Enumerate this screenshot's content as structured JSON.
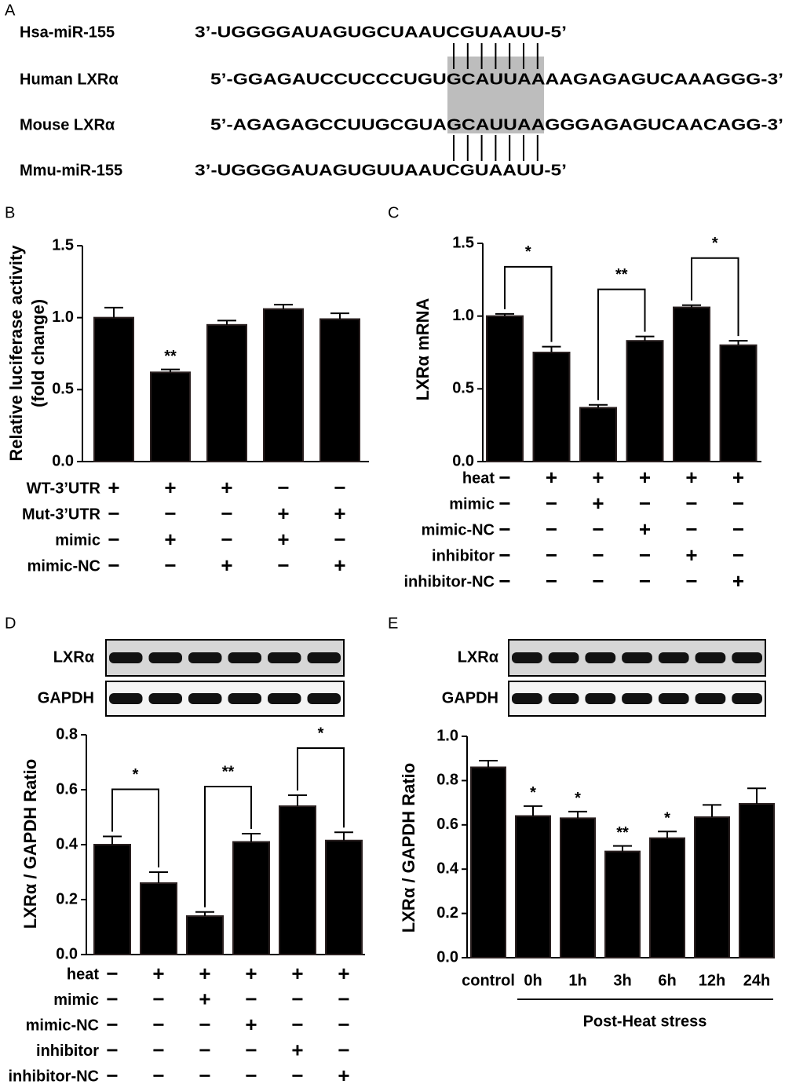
{
  "panel_labels": [
    "A",
    "B",
    "C",
    "D",
    "E"
  ],
  "alignment": {
    "rows": [
      {
        "name": "Hsa-miR-155",
        "sequence": "3’-UGGGGAUAGUGCUAAUCGUAAUU-5’"
      },
      {
        "name": "Human LXRα",
        "sequence": "5’-GGAGAUCCUCCCUGUGCAUUAAAAGAGAGUCAAAGGG-3’"
      },
      {
        "name": "Mouse LXRα",
        "sequence": "5’-AGAGAGCCUUGCGUAGCAUUAAGGGAGAGUCAACAGG-3’"
      },
      {
        "name": "Mmu-miR-155",
        "sequence": "3’-UGGGGAUAGUGUUAAUCGUAAUU-5’"
      }
    ]
  },
  "chart_data": [
    {
      "type": "bar",
      "ylabel": [
        "Relative luciferase activity",
        "(fold change)"
      ],
      "values": [
        1.0,
        0.62,
        0.95,
        1.06,
        0.99
      ],
      "errors": [
        0.07,
        0.02,
        0.03,
        0.03,
        0.04
      ],
      "annotations": [
        null,
        "**",
        null,
        null,
        null
      ],
      "color": "#000000",
      "ylim": [
        0,
        1.5
      ],
      "yticks": [
        {
          "value": 0,
          "label": "0.0"
        },
        0.5,
        {
          "value": 1,
          "label": "1.0"
        },
        1.5
      ],
      "conditions": [
        {
          "name": "WT-3’UTR",
          "signs": [
            "+",
            "+",
            "+",
            "−",
            "−"
          ]
        },
        {
          "name": "Mut-3’UTR",
          "signs": [
            "−",
            "−",
            "−",
            "+",
            "+"
          ]
        },
        {
          "name": "mimic",
          "signs": [
            "−",
            "+",
            "−",
            "+",
            "−"
          ]
        },
        {
          "name": "mimic-NC",
          "signs": [
            "−",
            "−",
            "+",
            "−",
            "+"
          ]
        }
      ]
    },
    {
      "type": "bar",
      "ylabel": [
        "LXRα mRNA"
      ],
      "values": [
        1.0,
        0.75,
        0.37,
        0.83,
        1.06,
        0.8
      ],
      "errors": [
        0.015,
        0.04,
        0.02,
        0.03,
        0.015,
        0.03
      ],
      "brackets": [
        "*",
        "**",
        "*"
      ],
      "color": "#000000",
      "ylim": [
        0,
        1.5
      ],
      "yticks": [
        {
          "value": 0,
          "label": "0.0"
        },
        0.5,
        {
          "value": 1,
          "label": "1.0"
        },
        1.5
      ],
      "conditions": [
        {
          "name": "heat",
          "signs": [
            "−",
            "+",
            "+",
            "+",
            "+",
            "+"
          ]
        },
        {
          "name": "mimic",
          "signs": [
            "−",
            "−",
            "+",
            "−",
            "−",
            "−"
          ]
        },
        {
          "name": "mimic-NC",
          "signs": [
            "−",
            "−",
            "−",
            "+",
            "−",
            "−"
          ]
        },
        {
          "name": "inhibitor",
          "signs": [
            "−",
            "−",
            "−",
            "−",
            "+",
            "−"
          ]
        },
        {
          "name": "inhibitor-NC",
          "signs": [
            "−",
            "−",
            "−",
            "−",
            "−",
            "+"
          ]
        }
      ]
    },
    {
      "type": "bar",
      "ylabel": [
        "LXRα / GAPDH Ratio"
      ],
      "blots": [
        "LXRα",
        "GAPDH"
      ],
      "values": [
        0.4,
        0.26,
        0.14,
        0.41,
        0.54,
        0.415
      ],
      "errors": [
        0.03,
        0.04,
        0.015,
        0.03,
        0.04,
        0.03
      ],
      "brackets": [
        "*",
        "**",
        "*"
      ],
      "color": "#000000",
      "ylim": [
        0,
        0.8
      ],
      "yticks": [
        {
          "value": 0,
          "label": "0.0"
        },
        0.2,
        0.4,
        0.6,
        0.8
      ],
      "conditions": [
        {
          "name": "heat",
          "signs": [
            "−",
            "+",
            "+",
            "+",
            "+",
            "+"
          ]
        },
        {
          "name": "mimic",
          "signs": [
            "−",
            "−",
            "+",
            "−",
            "−",
            "−"
          ]
        },
        {
          "name": "mimic-NC",
          "signs": [
            "−",
            "−",
            "−",
            "+",
            "−",
            "−"
          ]
        },
        {
          "name": "inhibitor",
          "signs": [
            "−",
            "−",
            "−",
            "−",
            "+",
            "−"
          ]
        },
        {
          "name": "inhibitor-NC",
          "signs": [
            "−",
            "−",
            "−",
            "−",
            "−",
            "+"
          ]
        }
      ]
    },
    {
      "type": "bar",
      "ylabel": [
        "LXRα / GAPDH Ratio"
      ],
      "blots": [
        "LXRα",
        "GAPDH"
      ],
      "categories": [
        "control",
        "0h",
        "1h",
        "3h",
        "6h",
        "12h",
        "24h"
      ],
      "xlabel": "Post-Heat stress",
      "values": [
        0.86,
        0.64,
        0.63,
        0.48,
        0.54,
        0.635,
        0.695
      ],
      "errors": [
        0.03,
        0.045,
        0.03,
        0.025,
        0.03,
        0.055,
        0.07
      ],
      "annotations": [
        null,
        "*",
        "*",
        "**",
        "*",
        null,
        null
      ],
      "color": "#000000",
      "ylim": [
        0,
        1.0
      ],
      "yticks": [
        {
          "value": 0,
          "label": "0.0"
        },
        0.2,
        0.4,
        0.6,
        0.8,
        {
          "value": 1,
          "label": "1.0"
        }
      ]
    }
  ]
}
